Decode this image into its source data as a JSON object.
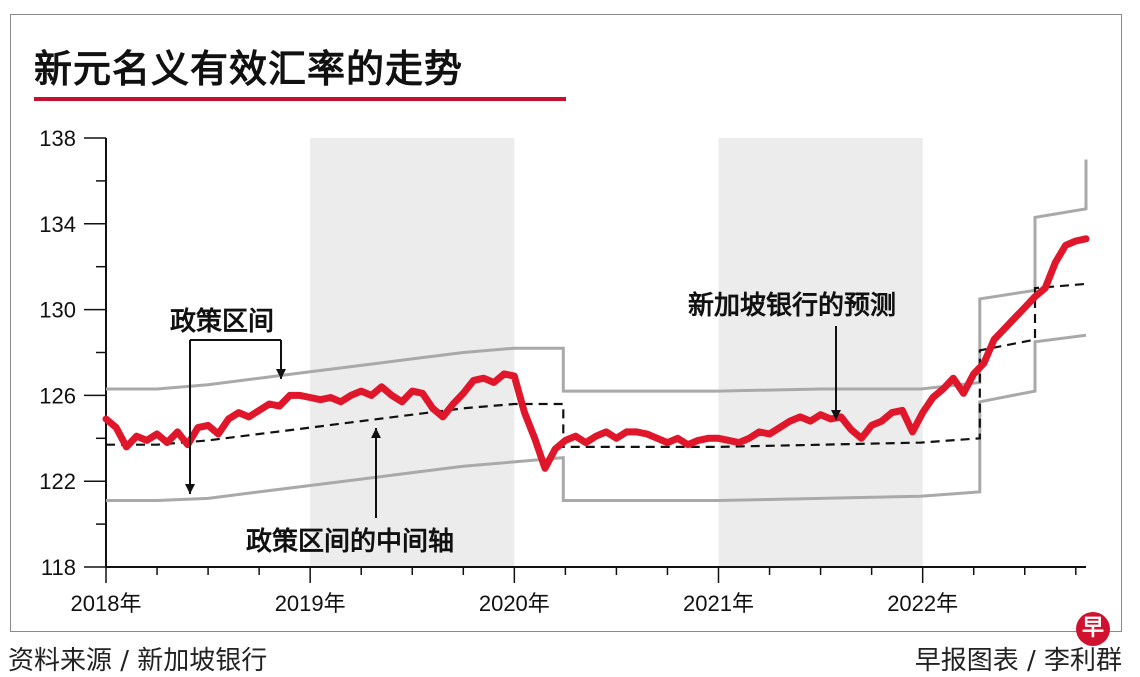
{
  "title": "新元名义有效汇率的走势",
  "source": "资料来源 / 新加坡银行",
  "credit": "早报图表 / 李利群",
  "logo_char": "早",
  "colors": {
    "accent": "#c8102e",
    "series_line": "#e0162b",
    "band": "#a9a9a9",
    "midline": "#111111",
    "shade": "#ececec"
  },
  "chart_data": {
    "type": "line",
    "title": "新元名义有效汇率的走势",
    "xlabel": "",
    "ylabel": "",
    "xlim": [
      2018.0,
      2022.8
    ],
    "ylim": [
      118,
      138
    ],
    "yticks": [
      118,
      122,
      126,
      130,
      134,
      138
    ],
    "xticks": [
      {
        "x": 2018,
        "label": "2018年"
      },
      {
        "x": 2019,
        "label": "2019年"
      },
      {
        "x": 2020,
        "label": "2020年"
      },
      {
        "x": 2021,
        "label": "2021年"
      },
      {
        "x": 2022,
        "label": "2022年"
      }
    ],
    "shaded_periods": [
      [
        2019,
        2020
      ],
      [
        2021,
        2022
      ]
    ],
    "series": [
      {
        "role": "exchange_rate",
        "values": [
          [
            2018.0,
            124.9
          ],
          [
            2018.05,
            124.5
          ],
          [
            2018.1,
            123.6
          ],
          [
            2018.15,
            124.1
          ],
          [
            2018.2,
            123.9
          ],
          [
            2018.25,
            124.2
          ],
          [
            2018.3,
            123.8
          ],
          [
            2018.35,
            124.3
          ],
          [
            2018.4,
            123.7
          ],
          [
            2018.45,
            124.5
          ],
          [
            2018.5,
            124.6
          ],
          [
            2018.55,
            124.2
          ],
          [
            2018.6,
            124.9
          ],
          [
            2018.65,
            125.2
          ],
          [
            2018.7,
            125.0
          ],
          [
            2018.75,
            125.3
          ],
          [
            2018.8,
            125.6
          ],
          [
            2018.85,
            125.5
          ],
          [
            2018.9,
            126.0
          ],
          [
            2018.95,
            126.0
          ],
          [
            2019.0,
            125.9
          ],
          [
            2019.05,
            125.8
          ],
          [
            2019.1,
            125.9
          ],
          [
            2019.15,
            125.7
          ],
          [
            2019.2,
            126.0
          ],
          [
            2019.25,
            126.2
          ],
          [
            2019.3,
            126.0
          ],
          [
            2019.35,
            126.4
          ],
          [
            2019.4,
            126.0
          ],
          [
            2019.45,
            125.7
          ],
          [
            2019.5,
            126.2
          ],
          [
            2019.55,
            126.1
          ],
          [
            2019.6,
            125.4
          ],
          [
            2019.65,
            125.0
          ],
          [
            2019.7,
            125.6
          ],
          [
            2019.75,
            126.1
          ],
          [
            2019.8,
            126.7
          ],
          [
            2019.85,
            126.8
          ],
          [
            2019.9,
            126.6
          ],
          [
            2019.95,
            127.0
          ],
          [
            2020.0,
            126.9
          ],
          [
            2020.05,
            125.2
          ],
          [
            2020.1,
            124.0
          ],
          [
            2020.15,
            122.6
          ],
          [
            2020.2,
            123.5
          ],
          [
            2020.25,
            123.9
          ],
          [
            2020.3,
            124.1
          ],
          [
            2020.35,
            123.8
          ],
          [
            2020.4,
            124.1
          ],
          [
            2020.45,
            124.3
          ],
          [
            2020.5,
            124.0
          ],
          [
            2020.55,
            124.3
          ],
          [
            2020.6,
            124.3
          ],
          [
            2020.65,
            124.2
          ],
          [
            2020.7,
            124.0
          ],
          [
            2020.75,
            123.8
          ],
          [
            2020.8,
            124.0
          ],
          [
            2020.85,
            123.7
          ],
          [
            2020.9,
            123.9
          ],
          [
            2020.95,
            124.0
          ],
          [
            2021.0,
            124.0
          ],
          [
            2021.05,
            123.9
          ],
          [
            2021.1,
            123.8
          ],
          [
            2021.15,
            124.0
          ],
          [
            2021.2,
            124.3
          ],
          [
            2021.25,
            124.2
          ],
          [
            2021.3,
            124.5
          ],
          [
            2021.35,
            124.8
          ],
          [
            2021.4,
            125.0
          ],
          [
            2021.45,
            124.8
          ],
          [
            2021.5,
            125.1
          ],
          [
            2021.55,
            124.9
          ],
          [
            2021.6,
            125.0
          ],
          [
            2021.65,
            124.4
          ],
          [
            2021.7,
            124.0
          ],
          [
            2021.75,
            124.6
          ],
          [
            2021.8,
            124.8
          ],
          [
            2021.85,
            125.2
          ],
          [
            2021.9,
            125.3
          ],
          [
            2021.95,
            124.3
          ],
          [
            2022.0,
            125.2
          ],
          [
            2022.05,
            125.9
          ],
          [
            2022.1,
            126.3
          ],
          [
            2022.15,
            126.8
          ],
          [
            2022.2,
            126.1
          ],
          [
            2022.25,
            127.0
          ],
          [
            2022.3,
            127.5
          ],
          [
            2022.35,
            128.6
          ],
          [
            2022.4,
            129.1
          ],
          [
            2022.45,
            129.6
          ],
          [
            2022.5,
            130.1
          ],
          [
            2022.55,
            130.6
          ],
          [
            2022.6,
            131.0
          ],
          [
            2022.65,
            132.2
          ],
          [
            2022.7,
            133.0
          ],
          [
            2022.75,
            133.2
          ],
          [
            2022.8,
            133.3
          ]
        ]
      },
      {
        "role": "band_upper",
        "values": [
          [
            2018.0,
            126.3
          ],
          [
            2018.25,
            126.3
          ],
          [
            2018.5,
            126.5
          ],
          [
            2018.75,
            126.8
          ],
          [
            2019.0,
            127.1
          ],
          [
            2019.25,
            127.4
          ],
          [
            2019.5,
            127.7
          ],
          [
            2019.75,
            128.0
          ],
          [
            2020.0,
            128.2
          ],
          [
            2020.24,
            128.2
          ],
          [
            2020.24,
            126.2
          ],
          [
            2020.5,
            126.2
          ],
          [
            2021.0,
            126.2
          ],
          [
            2021.5,
            126.3
          ],
          [
            2021.99,
            126.3
          ],
          [
            2022.28,
            126.6
          ],
          [
            2022.28,
            130.5
          ],
          [
            2022.55,
            130.9
          ],
          [
            2022.55,
            134.3
          ],
          [
            2022.8,
            134.7
          ],
          [
            2022.8,
            137.0
          ]
        ]
      },
      {
        "role": "band_lower",
        "values": [
          [
            2018.0,
            121.1
          ],
          [
            2018.25,
            121.1
          ],
          [
            2018.5,
            121.2
          ],
          [
            2018.75,
            121.5
          ],
          [
            2019.0,
            121.8
          ],
          [
            2019.25,
            122.1
          ],
          [
            2019.5,
            122.4
          ],
          [
            2019.75,
            122.7
          ],
          [
            2020.0,
            122.9
          ],
          [
            2020.24,
            123.1
          ],
          [
            2020.24,
            121.1
          ],
          [
            2020.5,
            121.1
          ],
          [
            2021.0,
            121.1
          ],
          [
            2021.5,
            121.2
          ],
          [
            2021.99,
            121.3
          ],
          [
            2022.28,
            121.5
          ],
          [
            2022.28,
            125.7
          ],
          [
            2022.55,
            126.2
          ],
          [
            2022.55,
            128.5
          ],
          [
            2022.8,
            128.8
          ]
        ]
      },
      {
        "role": "band_midpoint",
        "values": [
          [
            2018.0,
            123.7
          ],
          [
            2018.25,
            123.7
          ],
          [
            2018.5,
            123.9
          ],
          [
            2018.75,
            124.2
          ],
          [
            2019.0,
            124.5
          ],
          [
            2019.25,
            124.8
          ],
          [
            2019.5,
            125.1
          ],
          [
            2019.75,
            125.4
          ],
          [
            2020.0,
            125.6
          ],
          [
            2020.24,
            125.6
          ],
          [
            2020.24,
            123.6
          ],
          [
            2020.5,
            123.6
          ],
          [
            2021.0,
            123.6
          ],
          [
            2021.5,
            123.7
          ],
          [
            2021.99,
            123.8
          ],
          [
            2022.28,
            124.0
          ],
          [
            2022.28,
            128.1
          ],
          [
            2022.55,
            128.6
          ],
          [
            2022.55,
            131.0
          ],
          [
            2022.8,
            131.2
          ]
        ]
      }
    ],
    "annotations": [
      {
        "text": "政策区间",
        "at": [
          2018.35,
          129.9
        ]
      },
      {
        "text": "新加坡银行的预测",
        "at": [
          2021.42,
          130.2
        ]
      },
      {
        "text": "政策区间的中间轴",
        "at": [
          2018.65,
          120.8
        ]
      }
    ]
  }
}
